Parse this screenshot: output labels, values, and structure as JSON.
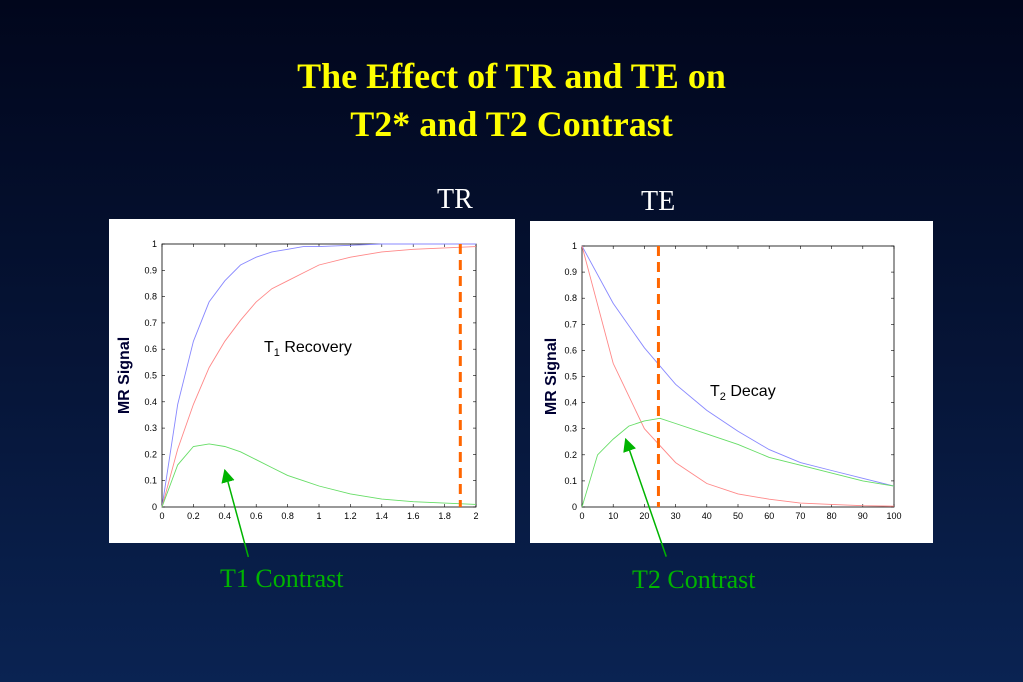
{
  "title_line1": "The Effect of TR and TE on",
  "title_line2": "T2* and T2 Contrast",
  "colors": {
    "title": "#ffff00",
    "marker": "#ff6600",
    "series_blue": "#8888ff",
    "series_red": "#ff8888",
    "series_green": "#66dd66",
    "contrast_text": "#00b400"
  },
  "chart_data": [
    {
      "type": "line",
      "axis_title": "TR",
      "ylabel": "MR Signal",
      "xlabel": "",
      "annotation_main": "T",
      "annotation_sub": "1",
      "annotation_rest": " Recovery",
      "contrast_label": "T1 Contrast",
      "xlim": [
        0,
        2
      ],
      "ylim": [
        0,
        1
      ],
      "xticks": [
        "0",
        "0.2",
        "0.4",
        "0.6",
        "0.8",
        "1",
        "1.2",
        "1.4",
        "1.6",
        "1.8",
        "2"
      ],
      "yticks": [
        "0",
        "0.1",
        "0.2",
        "0.3",
        "0.4",
        "0.5",
        "0.6",
        "0.7",
        "0.8",
        "0.9",
        "1"
      ],
      "marker_x": 1.9,
      "series": [
        {
          "color": "#8888ff",
          "x": [
            0,
            0.1,
            0.2,
            0.3,
            0.4,
            0.5,
            0.6,
            0.7,
            0.8,
            0.9,
            1.0,
            1.2,
            1.4,
            1.6,
            1.8,
            2.0
          ],
          "y": [
            0,
            0.39,
            0.63,
            0.78,
            0.86,
            0.92,
            0.95,
            0.97,
            0.98,
            0.99,
            0.99,
            0.995,
            1.0,
            1.0,
            1.0,
            1.0
          ]
        },
        {
          "color": "#ff8888",
          "x": [
            0,
            0.1,
            0.2,
            0.3,
            0.4,
            0.5,
            0.6,
            0.7,
            0.8,
            0.9,
            1.0,
            1.2,
            1.4,
            1.6,
            1.8,
            2.0
          ],
          "y": [
            0,
            0.22,
            0.39,
            0.53,
            0.63,
            0.71,
            0.78,
            0.83,
            0.86,
            0.89,
            0.92,
            0.95,
            0.97,
            0.98,
            0.985,
            0.99
          ]
        },
        {
          "color": "#66dd66",
          "x": [
            0,
            0.1,
            0.2,
            0.3,
            0.4,
            0.5,
            0.6,
            0.7,
            0.8,
            0.9,
            1.0,
            1.2,
            1.4,
            1.6,
            1.8,
            2.0
          ],
          "y": [
            0,
            0.16,
            0.23,
            0.24,
            0.23,
            0.21,
            0.18,
            0.15,
            0.12,
            0.1,
            0.08,
            0.05,
            0.03,
            0.02,
            0.015,
            0.01
          ]
        }
      ],
      "arrow_from": [
        0.55,
        -0.19
      ],
      "arrow_to": [
        0.4,
        0.14
      ]
    },
    {
      "type": "line",
      "axis_title": "TE",
      "ylabel": "MR Signal",
      "xlabel": "",
      "annotation_main": "T",
      "annotation_sub": "2",
      "annotation_rest": " Decay",
      "contrast_label": "T2 Contrast",
      "xlim": [
        0,
        100
      ],
      "ylim": [
        0,
        1
      ],
      "xticks": [
        "0",
        "10",
        "20",
        "30",
        "40",
        "50",
        "60",
        "70",
        "80",
        "90",
        "100"
      ],
      "yticks": [
        "0",
        "0.1",
        "0.2",
        "0.3",
        "0.4",
        "0.5",
        "0.6",
        "0.7",
        "0.8",
        "0.9",
        "1"
      ],
      "marker_x": 24.5,
      "series": [
        {
          "color": "#8888ff",
          "x": [
            0,
            10,
            20,
            30,
            40,
            50,
            60,
            70,
            80,
            90,
            100
          ],
          "y": [
            1,
            0.78,
            0.61,
            0.47,
            0.37,
            0.29,
            0.22,
            0.17,
            0.14,
            0.11,
            0.08
          ]
        },
        {
          "color": "#ff8888",
          "x": [
            0,
            10,
            20,
            30,
            40,
            50,
            60,
            70,
            80,
            90,
            100
          ],
          "y": [
            1,
            0.55,
            0.3,
            0.17,
            0.09,
            0.05,
            0.03,
            0.015,
            0.01,
            0.005,
            0.003
          ]
        },
        {
          "color": "#66dd66",
          "x": [
            0,
            5,
            10,
            15,
            20,
            25,
            30,
            40,
            50,
            60,
            70,
            80,
            90,
            100
          ],
          "y": [
            0,
            0.2,
            0.26,
            0.31,
            0.33,
            0.34,
            0.32,
            0.28,
            0.24,
            0.19,
            0.16,
            0.13,
            0.1,
            0.08
          ]
        }
      ],
      "arrow_from": [
        27,
        -0.19
      ],
      "arrow_to": [
        14,
        0.26
      ]
    }
  ]
}
